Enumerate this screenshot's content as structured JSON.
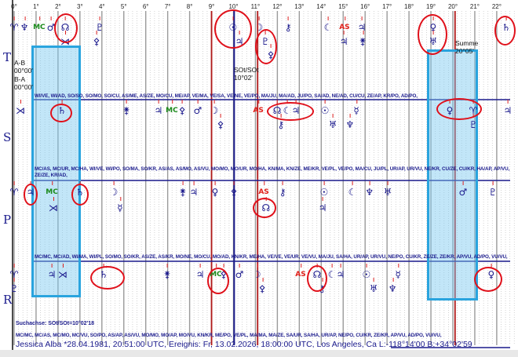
{
  "degree_labels": [
    "0°",
    "1°",
    "2°",
    "3°",
    "4°",
    "5°",
    "6°",
    "7°",
    "8°",
    "9°",
    "10°",
    "11°",
    "12°",
    "13°",
    "14°",
    "15°",
    "16°",
    "17°",
    "18°",
    "19°",
    "20°",
    "21°",
    "22°"
  ],
  "row_letters": [
    "T",
    "S",
    "P",
    "R"
  ],
  "colors": {
    "planet": "#16148a",
    "mc": "#1a8a1a",
    "as": "#e0201a",
    "axis_blue": "#1a1a8c",
    "axis_red": "#b01818",
    "annotation_circle": "#e0101a",
    "highlight_box": "#2aa4de"
  },
  "axes": {
    "search_axis_deg": 10.03,
    "red_axes_deg": [
      9.0,
      11.1,
      20.1
    ]
  },
  "rows": [
    {
      "letter": "T",
      "glyphs": [
        {
          "s": "♈",
          "d": 0,
          "l": 0
        },
        {
          "s": "♆",
          "d": 0.47,
          "l": 0
        },
        {
          "s": "MC",
          "d": 1.14,
          "l": 0,
          "t": "mc"
        },
        {
          "s": "♂",
          "d": 1.68,
          "l": 0
        },
        {
          "s": "☊",
          "d": 2.33,
          "l": 0
        },
        {
          "s": "⋊",
          "d": 2.33,
          "l": 1
        },
        {
          "s": "♇",
          "d": 3.9,
          "l": 0
        },
        {
          "s": "⚴",
          "d": 3.76,
          "l": 1
        },
        {
          "s": "☉",
          "d": 9.98,
          "l": 0
        },
        {
          "s": "♃",
          "d": 10.27,
          "l": 1
        },
        {
          "s": "☽",
          "d": 11.16,
          "l": 0
        },
        {
          "s": "♇",
          "d": 11.45,
          "l": 1
        },
        {
          "s": "⚴",
          "d": 11.7,
          "l": 2
        },
        {
          "s": "⚷",
          "d": 12.49,
          "l": 0
        },
        {
          "s": "☾",
          "d": 14.31,
          "l": 0
        },
        {
          "s": "AS",
          "d": 15.06,
          "l": 0,
          "t": "as"
        },
        {
          "s": "♃",
          "d": 15.03,
          "l": 1
        },
        {
          "s": "♃",
          "d": 15.85,
          "l": 0
        },
        {
          "s": "⚵",
          "d": 15.89,
          "l": 1
        },
        {
          "s": "♀",
          "d": 19.1,
          "l": 0
        },
        {
          "s": "♅",
          "d": 19.1,
          "l": 1
        },
        {
          "s": "♄",
          "d": 22.43,
          "l": 0
        }
      ]
    },
    {
      "letter": "S",
      "glyphs": [
        {
          "s": "⋊",
          "d": 0.29,
          "l": 0
        },
        {
          "s": "♄",
          "d": 2.18,
          "l": 0
        },
        {
          "s": "⚵",
          "d": 5.12,
          "l": 0
        },
        {
          "s": "♃",
          "d": 6.58,
          "l": 0
        },
        {
          "s": "MC",
          "d": 7.19,
          "l": 0,
          "t": "mc"
        },
        {
          "s": "⚴",
          "d": 7.66,
          "l": 0
        },
        {
          "s": "♂",
          "d": 8.37,
          "l": 0
        },
        {
          "s": "☽",
          "d": 9.12,
          "l": 0
        },
        {
          "s": "⚴",
          "d": 9.41,
          "l": 1
        },
        {
          "s": "AS",
          "d": 11.13,
          "l": 0,
          "t": "as"
        },
        {
          "s": "☊",
          "d": 11.99,
          "l": 0
        },
        {
          "s": "☾",
          "d": 12.45,
          "l": 0
        },
        {
          "s": "♃",
          "d": 12.84,
          "l": 0
        },
        {
          "s": "⚷",
          "d": 12.16,
          "l": 1
        },
        {
          "s": "☉",
          "d": 14.17,
          "l": 0
        },
        {
          "s": "☿",
          "d": 15.6,
          "l": 0
        },
        {
          "s": "♅",
          "d": 14.53,
          "l": 1
        },
        {
          "s": "♆",
          "d": 15.31,
          "l": 1
        },
        {
          "s": "♀",
          "d": 19.86,
          "l": 0
        },
        {
          "s": "♈",
          "d": 20.93,
          "l": 0
        },
        {
          "s": "♇",
          "d": 20.93,
          "l": 1
        },
        {
          "s": "♃",
          "d": 22.5,
          "l": 0
        }
      ]
    },
    {
      "letter": "P",
      "glyphs": [
        {
          "s": "♈",
          "d": 0,
          "l": 0
        },
        {
          "s": "♃",
          "d": 0.75,
          "l": 0
        },
        {
          "s": "MC",
          "d": 1.72,
          "l": 0,
          "t": "mc"
        },
        {
          "s": "⋊",
          "d": 1.79,
          "l": 1
        },
        {
          "s": "♄",
          "d": 3.0,
          "l": 0
        },
        {
          "s": "☽",
          "d": 4.54,
          "l": 0
        },
        {
          "s": "☿",
          "d": 4.83,
          "l": 1
        },
        {
          "s": "⚵",
          "d": 7.69,
          "l": 0
        },
        {
          "s": "♃",
          "d": 8.19,
          "l": 0
        },
        {
          "s": "♀",
          "d": 9.16,
          "l": 0
        },
        {
          "s": "⚴",
          "d": 10.02,
          "l": 0
        },
        {
          "s": "AS",
          "d": 11.38,
          "l": 0,
          "t": "as"
        },
        {
          "s": "⚷",
          "d": 12.24,
          "l": 0
        },
        {
          "s": "☊",
          "d": 11.48,
          "l": 1
        },
        {
          "s": "☉",
          "d": 14.13,
          "l": 0
        },
        {
          "s": "♃",
          "d": 14.06,
          "l": 1
        },
        {
          "s": "☾",
          "d": 15.42,
          "l": 0
        },
        {
          "s": "♆",
          "d": 16.2,
          "l": 0
        },
        {
          "s": "♅",
          "d": 17.03,
          "l": 0
        },
        {
          "s": "♂",
          "d": 20.46,
          "l": 0
        },
        {
          "s": "♇",
          "d": 21.82,
          "l": 0
        }
      ]
    },
    {
      "letter": "R",
      "glyphs": [
        {
          "s": "♈",
          "d": 0,
          "l": 0
        },
        {
          "s": "♇",
          "d": 0,
          "l": 1
        },
        {
          "s": "♃",
          "d": 1.72,
          "l": 0
        },
        {
          "s": "⋊",
          "d": 2.22,
          "l": 0
        },
        {
          "s": "♄",
          "d": 4.08,
          "l": 0
        },
        {
          "s": "⚵",
          "d": 6.98,
          "l": 0
        },
        {
          "s": "♃",
          "d": 8.48,
          "l": 0
        },
        {
          "s": "MC",
          "d": 9.19,
          "l": 0,
          "t": "mc"
        },
        {
          "s": "⚴",
          "d": 9.55,
          "l": 0
        },
        {
          "s": "♂",
          "d": 10.27,
          "l": 0
        },
        {
          "s": "☽",
          "d": 11.06,
          "l": 0
        },
        {
          "s": "⚴",
          "d": 11.31,
          "l": 1
        },
        {
          "s": "AS",
          "d": 13.06,
          "l": 0,
          "t": "as"
        },
        {
          "s": "☊",
          "d": 13.81,
          "l": 0
        },
        {
          "s": "⚷",
          "d": 14.03,
          "l": 1
        },
        {
          "s": "☾",
          "d": 14.49,
          "l": 0
        },
        {
          "s": "♃",
          "d": 14.88,
          "l": 0
        },
        {
          "s": "☉",
          "d": 16.06,
          "l": 0
        },
        {
          "s": "♅",
          "d": 16.39,
          "l": 1
        },
        {
          "s": "♆",
          "d": 17.25,
          "l": 1
        },
        {
          "s": "☿",
          "d": 17.5,
          "l": 0
        },
        {
          "s": "♀",
          "d": 21.75,
          "l": 0
        }
      ]
    }
  ],
  "notes": {
    "ab_label": "A-B",
    "ab_value": "00°00'",
    "ba_label": "B-A",
    "ba_value": "00°00'",
    "axis_label": "SOt/SOt",
    "axis_value": "10°02'",
    "summe_label": "Summe",
    "summe_value": "20°05'"
  },
  "pairs": {
    "T": "WI/VE, WI/AD, SO/SO, SO/MO, SO/CU, AS/ME, AS/ZE, MO/CU, ME/AP, VE/MA, VE/SA, VE/NE, VE/PO, MA/JU, MA/AD, JU/PO, SA/AD, NE/AD, CU/CU, ZE/AP, KR/PO, AD/PO,",
    "S": "MC/AS, MC/UR, MC/HA, WI/VE, WI/PO, SO/MA, SO/KR, AS/AS, AS/MO, AS/VU, MO/MO, MO/UR, MO/HA, KN/MA, KN/ZE, ME/KR, VE/PL, VE/PO, MA/CU, JU/PL, UR/AP, UR/VU, NE/KR, CU/ZE, CU/KR, HA/AP, AP/VU, ZE/ZE, KR/AD,",
    "P": "MC/MC, MC/AD, WI/MA, WI/PL, SO/MO, SO/KR, AS/ZE, AS/KR, MO/NE, MO/CU, MO/AD, KN/KR, ME/HA, VE/VE, VE/UR, VE/VU, MA/JU, SA/HA, UR/AP, UR/VU, NE/PO, CU/KR, ZE/ZE, ZE/KR, AP/VU, AD/PO, VU/VU,",
    "R": "MC/MC, MC/AS, MC/MO, MC/VU, SO/PO, AS/AP, AS/VU, MO/MO, MO/AP, MO/VU, KN/KR, ME/PO, VE/PL, MA/MA, MA/ZE, SA/UR, SA/HA, UR/AP, NE/PO, CU/KR, ZE/KR, AP/VU, AD/PO, VU/VU,"
  },
  "suchachse": "Suchachse: SOt/SOt=10°02'18",
  "footer": "Jessica Alba  *28.04.1981, 20:51:00 UTC, Ereignis: Fr, 13.02.2026, 18:00:00 UTC, Los Angeles, Ca L:-118°14'00 B:+34°02'59"
}
